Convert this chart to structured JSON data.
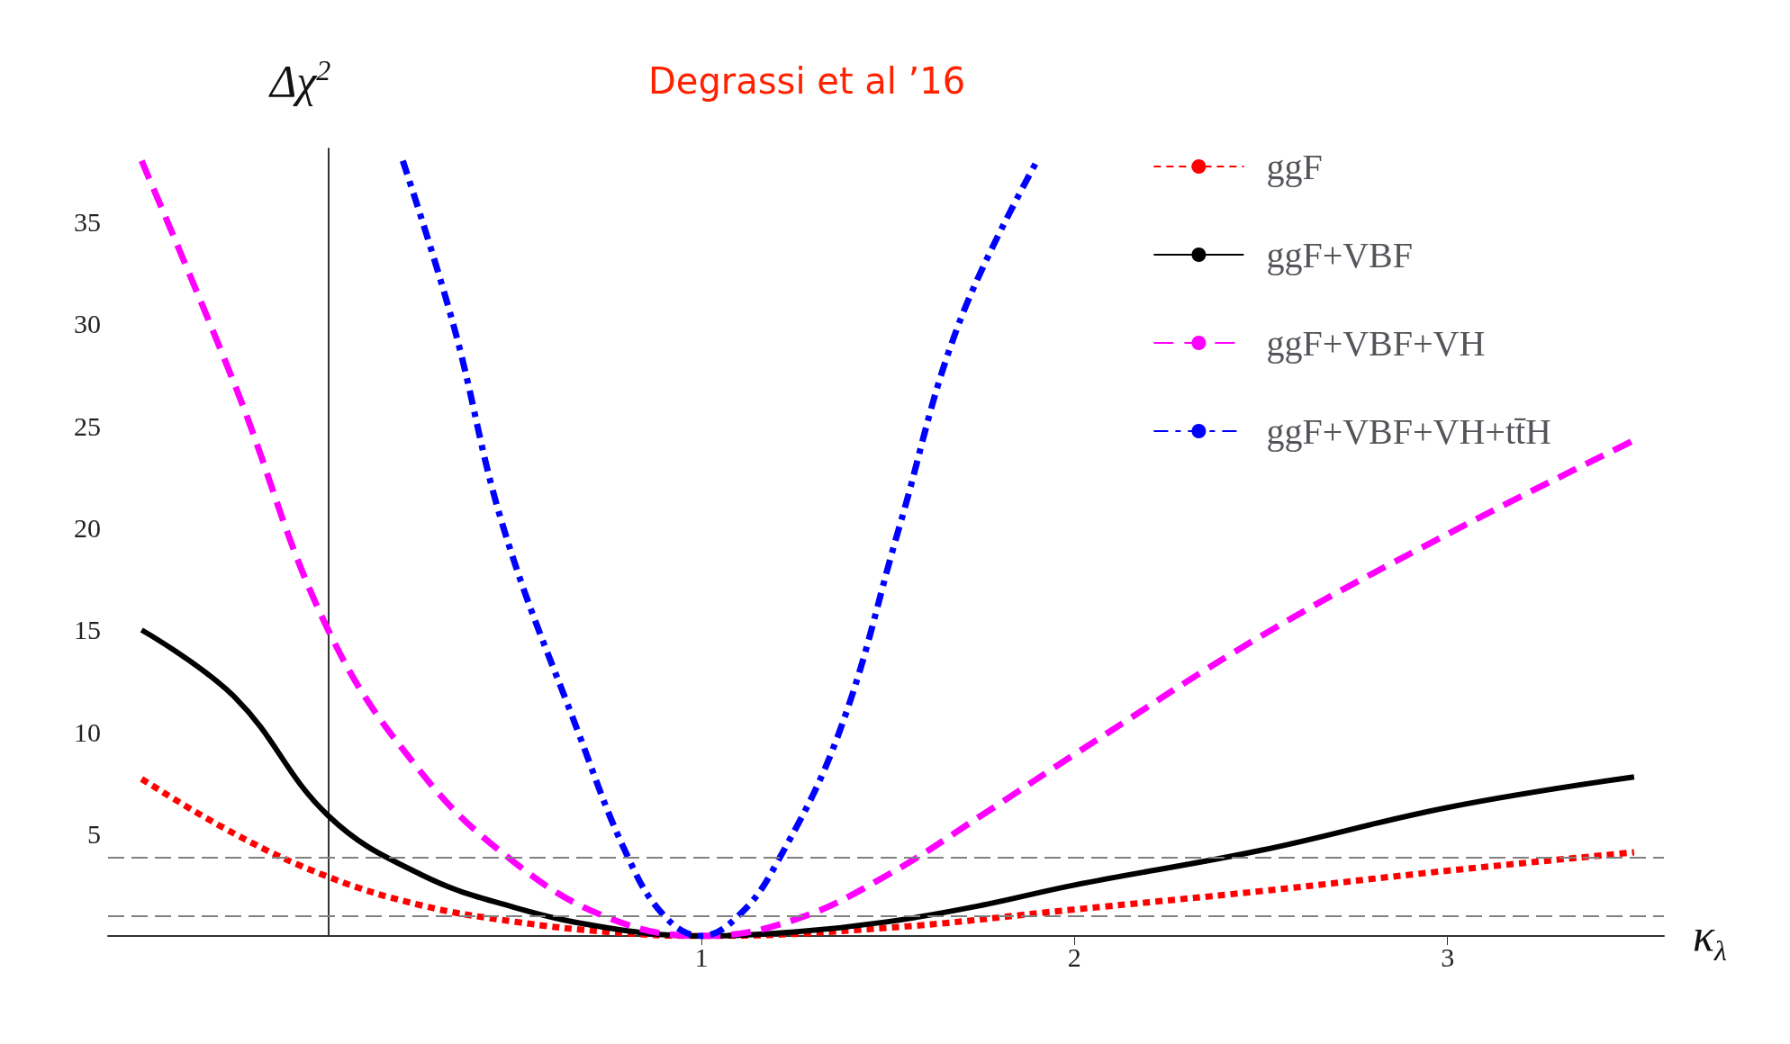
{
  "chart_data": {
    "type": "line",
    "title": "Degrassi et al ’16",
    "xlabel": "κ$_{λ}$",
    "ylabel": "Δχ$^{2}$",
    "xlim": [
      -0.59,
      3.58
    ],
    "xticks": [
      1,
      2,
      3
    ],
    "ylim": [
      0,
      38.6
    ],
    "yticks": [
      5,
      10,
      15,
      20,
      25,
      30,
      35
    ],
    "series": [
      {
        "name": "ggF",
        "color": "#ff0000",
        "line_style": "dotted",
        "x": [
          -0.5,
          -0.25,
          0,
          0.25,
          0.5,
          0.75,
          1,
          1.5,
          2,
          2.5,
          3,
          3.5
        ],
        "values": [
          7.7,
          5,
          2.9,
          1.5,
          0.7,
          0.2,
          0,
          0.4,
          1.3,
          2.2,
          3.2,
          4.1
        ]
      },
      {
        "name": "ggF+VBF",
        "color": "#000000",
        "line_style": "solid",
        "x": [
          -0.5,
          -0.25,
          0,
          0.25,
          0.5,
          0.75,
          1,
          1.25,
          1.5,
          1.75,
          2,
          2.5,
          3,
          3.5
        ],
        "values": [
          15,
          11.7,
          5.9,
          3,
          1.4,
          0.4,
          0,
          0.2,
          0.7,
          1.5,
          2.5,
          4.2,
          6.3,
          7.8
        ]
      },
      {
        "name": "ggF+VBF+VH",
        "color": "#ff00ff",
        "line_style": "dashed",
        "x": [
          -0.5,
          -0.25,
          0,
          0.25,
          0.5,
          0.75,
          1,
          1.25,
          1.5,
          1.75,
          2,
          2.5,
          3,
          3.5
        ],
        "values": [
          38,
          27,
          15,
          8,
          3.6,
          0.9,
          0,
          0.8,
          3,
          5.9,
          8.9,
          14.7,
          19.7,
          24.3
        ]
      },
      {
        "name": "ggF+VBF+VH+tt̄H",
        "color": "#0000ff",
        "line_style": "dashed",
        "x": [
          0.2,
          0.335,
          0.47,
          0.67,
          0.8,
          0.9,
          1,
          1.1,
          1.2,
          1.37,
          1.53,
          1.69,
          1.9
        ],
        "values": [
          38,
          30,
          20,
          10,
          4,
          1,
          0,
          1,
          3.5,
          10,
          20,
          30,
          38
        ]
      }
    ],
    "ref_lines": [
      {
        "axis": "y",
        "value": 1,
        "color": "#808080",
        "line_style": "dashed"
      },
      {
        "axis": "y",
        "value": 3.84,
        "color": "#808080",
        "line_style": "dashed"
      }
    ],
    "legend": "top right",
    "grid": false,
    "marker": "none"
  }
}
